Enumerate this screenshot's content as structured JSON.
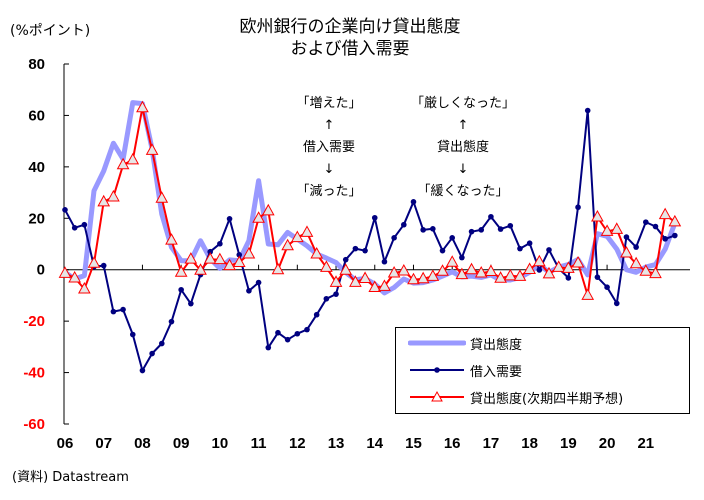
{
  "chart_data": {
    "type": "line",
    "title": "欧州銀行の企業向け貸出態度\nおよび借入需要",
    "title_lines": [
      "欧州銀行の企業向け貸出態度",
      "および借入需要"
    ],
    "ylabel": "(%ポイント)",
    "xlabel": "",
    "ylim": [
      -60,
      80
    ],
    "yticks": [
      80,
      60,
      40,
      20,
      0,
      -20,
      -40,
      -60
    ],
    "ytick_labels": [
      "80",
      "60",
      "40",
      "20",
      "0",
      "-20",
      "-40",
      "-60"
    ],
    "negative_tick_color": "#ff0000",
    "xticks": [
      "06",
      "07",
      "08",
      "09",
      "10",
      "11",
      "12",
      "13",
      "14",
      "15",
      "16",
      "17",
      "18",
      "19",
      "20",
      "21"
    ],
    "x_frequency": "quarterly",
    "x_start": "2006Q1",
    "x_end": "2021Q4",
    "grid": false,
    "legend_position": "bottom-right",
    "series": [
      {
        "name": "貸出態度",
        "color": "#9999ff",
        "marker": "none",
        "values": [
          -1,
          -3.6,
          -2.3,
          30.7,
          38.4,
          49.2,
          43,
          65,
          64.6,
          46.9,
          21.6,
          8.7,
          3.5,
          3.5,
          11.3,
          4.3,
          0.5,
          3.8,
          3.5,
          11.3,
          34.6,
          10,
          9.7,
          14.5,
          11.9,
          9.3,
          6.1,
          4.5,
          2.8,
          -1.1,
          -3.9,
          -3.4,
          -5.6,
          -9,
          -6.9,
          -3.6,
          -5.2,
          -5,
          -4,
          -2.5,
          -0.8,
          -2.8,
          -2.5,
          -3,
          -2,
          -4,
          -4,
          -3,
          -1,
          2,
          -1,
          1,
          2,
          4,
          -2,
          14,
          13,
          8,
          0,
          -1,
          1,
          2,
          8,
          18
        ]
      },
      {
        "name": "借入需要",
        "color": "#000080",
        "marker": "circle",
        "values": [
          23.3,
          16.3,
          17.5,
          1.2,
          1.6,
          -16.3,
          -15.5,
          -25.2,
          -39.2,
          -32.6,
          -28.7,
          -20.2,
          -7.8,
          -13.2,
          -1.9,
          7.0,
          10.1,
          19.8,
          5.8,
          -8.2,
          -5.0,
          -30.3,
          -24.5,
          -27.2,
          -24.9,
          -23.3,
          -17.5,
          -11.3,
          -9.5,
          3.9,
          8.2,
          7.4,
          20.2,
          3.1,
          12.4,
          17.5,
          26.4,
          15.5,
          15.9,
          7.4,
          12.4,
          4.7,
          14.8,
          15.5,
          20.6,
          15.8,
          17.1,
          8.2,
          10.3,
          -0.1,
          7.7,
          0.5,
          -3.2,
          24.3,
          61.9,
          -2.9,
          -6.8,
          -13.1,
          12.7,
          8.8,
          18.5,
          16.8,
          12,
          13.3
        ]
      },
      {
        "name": "貸出態度(次期四半期予想)",
        "color": "#ff0000",
        "marker": "triangle",
        "values": [
          -1.4,
          -3.2,
          -7.5,
          2.5,
          26.4,
          28.3,
          40.8,
          42.7,
          63,
          46.4,
          27.8,
          11.5,
          -1,
          4.1,
          -0.2,
          4.1,
          3.9,
          1.6,
          2.8,
          6.1,
          20,
          22.9,
          0,
          9.3,
          12.5,
          14.5,
          6.1,
          0.9,
          -4.9,
          -0.2,
          -4.9,
          -3.4,
          -6.9,
          -6.5,
          -1.3,
          -0.5,
          -3.9,
          -3.5,
          -2.6,
          -0.6,
          2.9,
          -1.9,
          0,
          -1.3,
          -0.7,
          -3.3,
          -2.4,
          -2.6,
          0.1,
          3.1,
          -1.6,
          0.9,
          0.5,
          2.6,
          -10,
          20.5,
          14.9,
          15.7,
          6.5,
          2.3,
          -0.6,
          -1.5,
          21.4,
          18.6
        ]
      }
    ],
    "annotations": {
      "borrowing": [
        "「増えた」",
        "↑",
        "借入需要",
        "↓",
        "「減った」"
      ],
      "lending": [
        "「厳しくなった」",
        "↑",
        "貸出態度",
        "↓",
        "「緩くなった」"
      ]
    },
    "source": "(資料) Datastream"
  }
}
